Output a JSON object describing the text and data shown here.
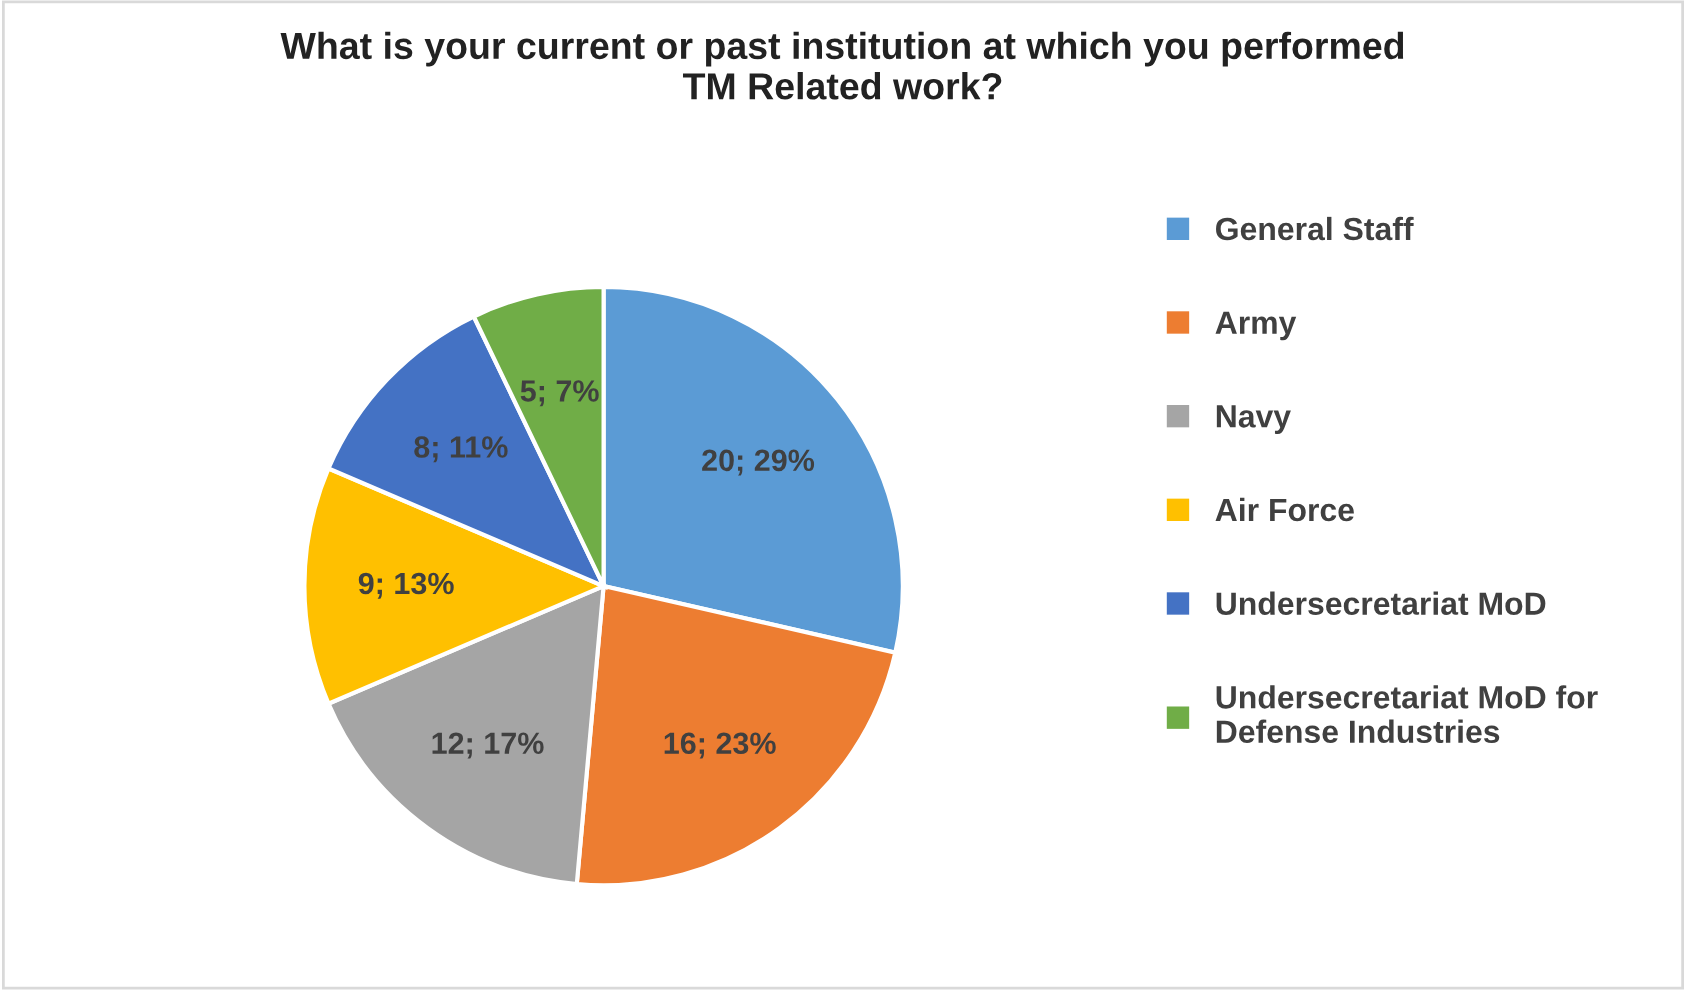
{
  "chart_data": {
    "type": "pie",
    "title": "What is your current or past institution at which you performed\nTM Related work?",
    "categories": [
      "General Staff",
      "Army",
      "Navy",
      "Air Force",
      "Undersecretariat MoD",
      "Undersecretariat MoD for\nDefense Industries"
    ],
    "values": [
      20,
      16,
      12,
      9,
      8,
      5
    ],
    "colors": [
      "#5b9bd5",
      "#ed7d31",
      "#a5a5a5",
      "#ffc000",
      "#4472c4",
      "#70ad47"
    ],
    "value_labels": [
      "20; 29%",
      "16; 23%",
      "12; 17%",
      "9; 13%",
      "8; 11%",
      "5; 7%"
    ],
    "legend": "right"
  }
}
